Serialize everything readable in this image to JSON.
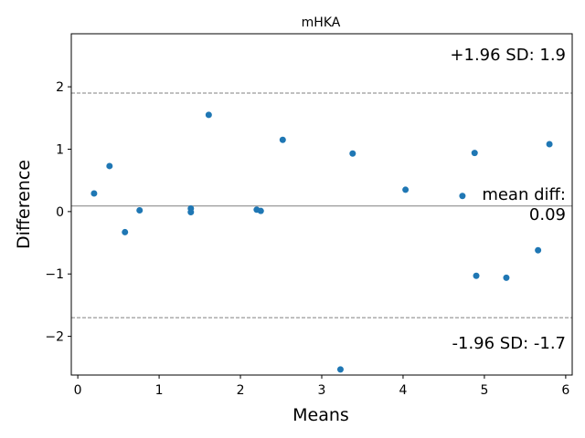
{
  "chart_data": {
    "type": "scatter",
    "title": "mHKA",
    "xlabel": "Means",
    "ylabel": "Difference",
    "xlim": [
      -0.08,
      6.08
    ],
    "ylim": [
      -2.62,
      2.85
    ],
    "xticks": [
      0,
      1,
      2,
      3,
      4,
      5,
      6
    ],
    "yticks": [
      -2,
      -1,
      0,
      1,
      2
    ],
    "grid": false,
    "point_color": "#1f77b4",
    "line_colors": {
      "limits": "#808080",
      "mean": "#808080"
    },
    "points": [
      {
        "x": 0.2,
        "y": 0.29
      },
      {
        "x": 0.39,
        "y": 0.73
      },
      {
        "x": 0.58,
        "y": -0.33
      },
      {
        "x": 0.76,
        "y": 0.02
      },
      {
        "x": 1.39,
        "y": 0.05
      },
      {
        "x": 1.39,
        "y": -0.01
      },
      {
        "x": 1.61,
        "y": 1.55
      },
      {
        "x": 2.2,
        "y": 0.03
      },
      {
        "x": 2.25,
        "y": 0.01
      },
      {
        "x": 2.52,
        "y": 1.15
      },
      {
        "x": 3.23,
        "y": -2.53
      },
      {
        "x": 3.38,
        "y": 0.93
      },
      {
        "x": 4.03,
        "y": 0.35
      },
      {
        "x": 4.73,
        "y": 0.25
      },
      {
        "x": 4.88,
        "y": 0.94
      },
      {
        "x": 4.9,
        "y": -1.03
      },
      {
        "x": 5.27,
        "y": -1.06
      },
      {
        "x": 5.66,
        "y": -0.62
      },
      {
        "x": 5.8,
        "y": 1.08
      }
    ],
    "mean_diff": 0.09,
    "upper_loa": 1.9,
    "lower_loa": -1.7,
    "annotations": {
      "upper": "+1.96 SD: 1.9",
      "mean_line1": "mean diff:",
      "mean_line2": "0.09",
      "lower": "-1.96 SD: -1.7"
    }
  }
}
